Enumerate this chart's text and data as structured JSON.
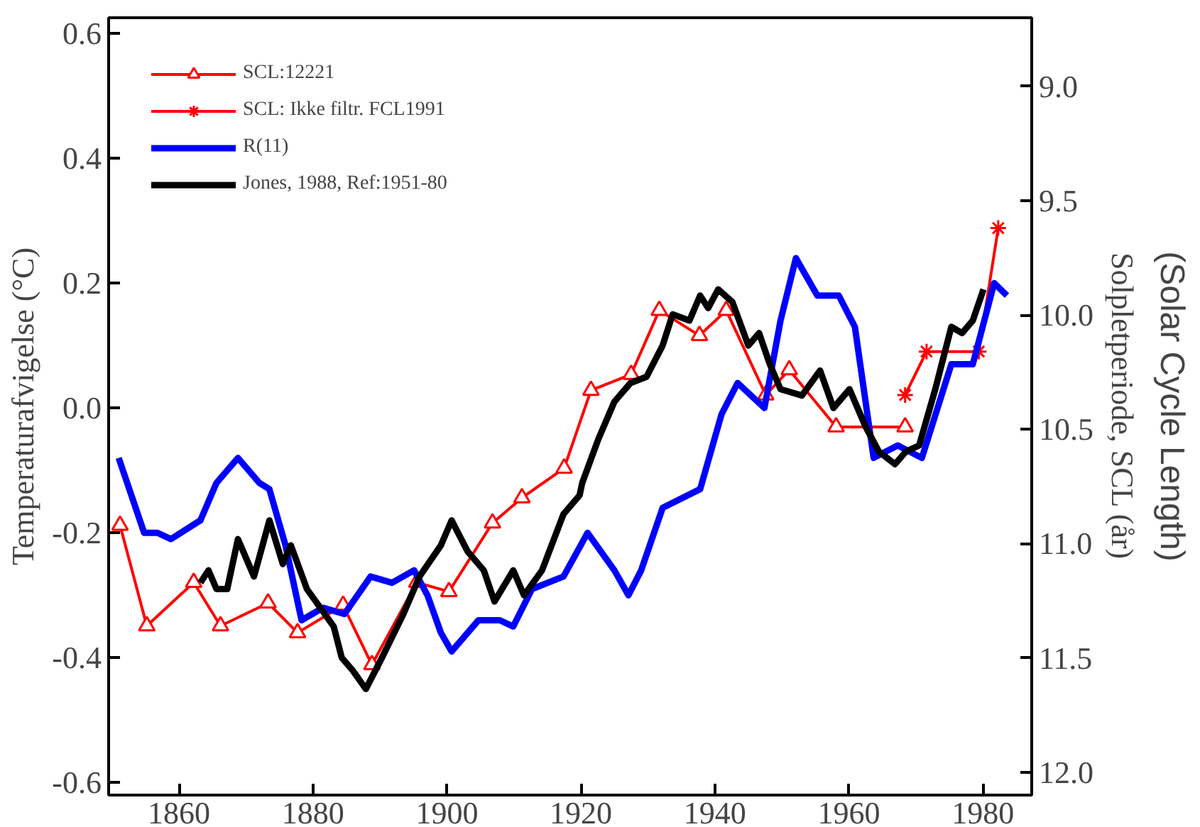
{
  "chart_data": {
    "type": "line",
    "xlabel": null,
    "ylabel": "Temperaturafvigelse (°C)",
    "y2label": "Solpletperiode, SCL (år)",
    "annotations": [
      "(Solar Cycle Length)"
    ],
    "xlim": [
      1849.5,
      1987.3
    ],
    "xticks": [
      1860,
      1880,
      1900,
      1920,
      1940,
      1960,
      1980
    ],
    "ylim": [
      -0.62,
      0.625
    ],
    "yticks": [
      {
        "value": -0.6,
        "label": "-0.6"
      },
      {
        "value": -0.4,
        "label": "-0.4"
      },
      {
        "value": -0.2,
        "label": "-0.2"
      },
      {
        "value": 0,
        "label": "0.0"
      },
      {
        "value": 0.2,
        "label": "0.2"
      },
      {
        "value": 0.4,
        "label": "0.4"
      },
      {
        "value": 0.6,
        "label": "0.6"
      }
    ],
    "y2lim": [
      12.1,
      8.7
    ],
    "y2ticks": [
      {
        "value": 9,
        "label": "9.0"
      },
      {
        "value": 9.5,
        "label": "9.5"
      },
      {
        "value": 10,
        "label": "10.0"
      },
      {
        "value": 10.5,
        "label": "10.5"
      },
      {
        "value": 11,
        "label": "11.0"
      },
      {
        "value": 11.5,
        "label": "11.5"
      },
      {
        "value": 12,
        "label": "12.0"
      }
    ],
    "grid": false,
    "legend": "top left",
    "series": [
      {
        "name": "SCL:12221",
        "color": "#ff0000",
        "axis": "y2",
        "marker": "triangle",
        "x": [
          1851.2,
          1855.2,
          1862.2,
          1866.2,
          1873.3,
          1877.7,
          1884.5,
          1888.8,
          1895.5,
          1900.3,
          1906.8,
          1911.2,
          1917.5,
          1921.5,
          1927.5,
          1931.7,
          1937.7,
          1941.7,
          1947.6,
          1951.1,
          1958.1,
          1968.4
        ],
        "values": [
          10.92,
          11.36,
          11.17,
          11.36,
          11.26,
          11.39,
          11.27,
          11.53,
          11.17,
          11.21,
          10.91,
          10.8,
          10.67,
          10.33,
          10.26,
          9.98,
          10.09,
          9.98,
          10.35,
          10.24,
          10.49,
          10.49
        ]
      },
      {
        "name": "SCL: Ikke filtr. FCL1991",
        "color": "#ff0000",
        "axis": "y2",
        "marker": "cross",
        "x": [
          1968.4,
          1971.6,
          1979.4,
          1982.3
        ],
        "values": [
          10.35,
          10.16,
          10.16,
          9.62
        ]
      },
      {
        "name": "R(11)",
        "color": "#0000ff",
        "marker": "none",
        "x": [
          1851.0,
          1854.8,
          1856.8,
          1858.8,
          1863.2,
          1865.6,
          1868.8,
          1872.0,
          1873.5,
          1875.9,
          1878.3,
          1881.5,
          1884.7,
          1888.6,
          1891.8,
          1895.1,
          1897.1,
          1899.1,
          1900.7,
          1904.7,
          1907.9,
          1909.9,
          1912.7,
          1917.4,
          1921.0,
          1925.0,
          1927.1,
          1929.0,
          1932.2,
          1937.8,
          1941.0,
          1943.4,
          1947.4,
          1949.8,
          1952.1,
          1955.3,
          1958.5,
          1960.9,
          1963.7,
          1967.3,
          1970.9,
          1975.3,
          1978.5,
          1981.7,
          1983.6
        ],
        "values": [
          -0.08,
          -0.2,
          -0.2,
          -0.21,
          -0.18,
          -0.12,
          -0.08,
          -0.12,
          -0.13,
          -0.22,
          -0.34,
          -0.32,
          -0.33,
          -0.27,
          -0.28,
          -0.26,
          -0.3,
          -0.36,
          -0.39,
          -0.34,
          -0.34,
          -0.35,
          -0.29,
          -0.27,
          -0.2,
          -0.26,
          -0.3,
          -0.26,
          -0.16,
          -0.13,
          -0.01,
          0.04,
          0.0,
          0.14,
          0.24,
          0.18,
          0.18,
          0.13,
          -0.08,
          -0.06,
          -0.08,
          0.07,
          0.07,
          0.2,
          0.18
        ]
      },
      {
        "name": "Jones, 1988, Ref:1951-80",
        "color": "#000000",
        "marker": "none",
        "x": [
          1863.2,
          1864.4,
          1865.6,
          1867.2,
          1868.8,
          1871.2,
          1873.5,
          1875.5,
          1876.7,
          1879.1,
          1881.1,
          1883.1,
          1884.3,
          1885.9,
          1887.9,
          1890.3,
          1893.5,
          1895.9,
          1899.1,
          1900.7,
          1903.1,
          1905.5,
          1907.1,
          1909.9,
          1911.5,
          1914.2,
          1917.4,
          1919.8,
          1920.2,
          1922.6,
          1925.0,
          1927.4,
          1929.8,
          1932.2,
          1933.7,
          1936.2,
          1937.8,
          1939.0,
          1940.5,
          1942.6,
          1945.0,
          1946.6,
          1948.2,
          1949.8,
          1953.0,
          1955.7,
          1957.7,
          1960.1,
          1962.5,
          1964.5,
          1966.9,
          1968.5,
          1970.5,
          1972.9,
          1975.3,
          1976.9,
          1978.5,
          1980.1
        ],
        "values": [
          -0.28,
          -0.26,
          -0.29,
          -0.29,
          -0.21,
          -0.27,
          -0.18,
          -0.25,
          -0.22,
          -0.29,
          -0.32,
          -0.35,
          -0.4,
          -0.42,
          -0.45,
          -0.4,
          -0.33,
          -0.27,
          -0.22,
          -0.18,
          -0.23,
          -0.26,
          -0.31,
          -0.26,
          -0.3,
          -0.26,
          -0.17,
          -0.14,
          -0.12,
          -0.05,
          0.01,
          0.04,
          0.05,
          0.1,
          0.15,
          0.14,
          0.18,
          0.16,
          0.19,
          0.17,
          0.1,
          0.12,
          0.07,
          0.03,
          0.02,
          0.06,
          0.0,
          0.03,
          -0.03,
          -0.07,
          -0.09,
          -0.07,
          -0.06,
          0.03,
          0.13,
          0.12,
          0.14,
          0.19
        ]
      }
    ]
  }
}
